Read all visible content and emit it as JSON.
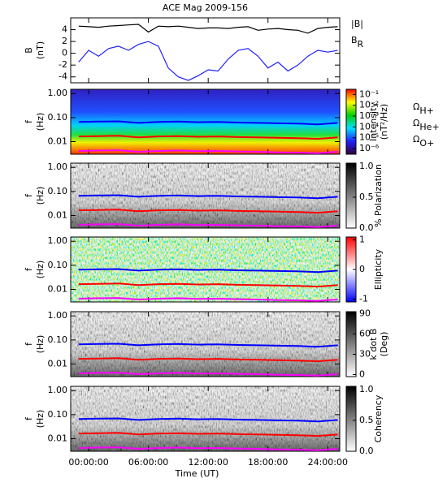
{
  "chart_data": [
    {
      "type": "line",
      "title": "ACE Mag 2009-156",
      "y_label": [
        "B",
        "(nT)"
      ],
      "x": [
        -1,
        0,
        1,
        2,
        3,
        4,
        5,
        6,
        7,
        8,
        9,
        10,
        11,
        12,
        13,
        14,
        15,
        16,
        17,
        18,
        19,
        20,
        21,
        22,
        23,
        24,
        25
      ],
      "xlim": [
        -1.8,
        25.2
      ],
      "xticks": [
        0,
        6,
        12,
        18,
        24
      ],
      "ylim": [
        -5,
        6
      ],
      "yticks": [
        -4,
        -2,
        0,
        2,
        4
      ],
      "series": [
        {
          "name": "|B|",
          "color": "#000000",
          "values": [
            4.6,
            4.5,
            4.4,
            4.6,
            4.7,
            4.8,
            4.9,
            3.6,
            4.6,
            4.5,
            4.6,
            4.4,
            4.2,
            4.3,
            4.3,
            4.2,
            4.4,
            4.5,
            3.9,
            4.1,
            4.2,
            4.0,
            3.9,
            3.4,
            4.2,
            4.4,
            4.5
          ]
        },
        {
          "name": "BR",
          "color": "#2020ff",
          "values": [
            -1.5,
            0.5,
            -0.5,
            0.8,
            1.2,
            0.5,
            1.5,
            2.0,
            1.2,
            -2.5,
            -4.0,
            -4.6,
            -3.8,
            -2.8,
            -3.0,
            -1.0,
            0.5,
            0.8,
            -0.5,
            -2.5,
            -1.5,
            -3.0,
            -2.0,
            -0.5,
            0.5,
            0.2,
            0.5
          ]
        }
      ]
    },
    {
      "type": "spectrogram",
      "y_label": [
        "f",
        "(Hz)"
      ],
      "log_y": true,
      "x": [
        -1,
        1,
        3,
        5,
        7,
        9,
        11,
        13,
        15,
        17,
        19,
        21,
        23,
        25
      ],
      "xlim": [
        -1.8,
        25.2
      ],
      "xticks": [
        0,
        6,
        12,
        18,
        24
      ],
      "ylim": [
        0.003,
        1.5
      ],
      "yticks": [
        {
          "value": 1,
          "label": "1.00"
        },
        {
          "value": 0.1,
          "label": "0.10"
        },
        {
          "value": 0.01,
          "label": "0.01"
        }
      ],
      "colorbar": {
        "label": [
          "Intensity",
          "(nT²/Hz)"
        ],
        "log": true,
        "lim": [
          3e-07,
          0.3
        ],
        "colors": [
          "#30003a",
          "#2020ff",
          "#00e0ff",
          "#00d000",
          "#ffff00",
          "#ff0000"
        ],
        "ticks": [
          {
            "value": 0.1,
            "label": "10⁻¹"
          },
          {
            "value": 0.01,
            "label": "10⁻²"
          },
          {
            "value": 0.001,
            "label": "10⁻³"
          },
          {
            "value": 0.0001,
            "label": "10⁻⁴"
          },
          {
            "value": 1e-05,
            "label": "10⁻⁵"
          },
          {
            "value": 1e-06,
            "label": "10⁻⁶"
          }
        ]
      },
      "series": [
        {
          "name": "ΩH+",
          "color": "#0000ff",
          "values": [
            0.066,
            0.068,
            0.07,
            0.06,
            0.066,
            0.068,
            0.064,
            0.066,
            0.062,
            0.06,
            0.058,
            0.056,
            0.052,
            0.06
          ]
        },
        {
          "name": "ΩHe+",
          "color": "#ff0000",
          "values": [
            0.0165,
            0.017,
            0.0175,
            0.015,
            0.0165,
            0.017,
            0.016,
            0.0165,
            0.0155,
            0.015,
            0.0145,
            0.014,
            0.013,
            0.015
          ]
        },
        {
          "name": "ΩO+",
          "color": "#ff00ff",
          "values": [
            0.0041,
            0.0043,
            0.0044,
            0.0038,
            0.0041,
            0.0043,
            0.004,
            0.0041,
            0.0039,
            0.0038,
            0.0036,
            0.0035,
            0.0033,
            0.0038
          ]
        }
      ]
    },
    {
      "type": "spectrogram",
      "y_label": [
        "f",
        "(Hz)"
      ],
      "log_y": true,
      "x": [
        -1,
        1,
        3,
        5,
        7,
        9,
        11,
        13,
        15,
        17,
        19,
        21,
        23,
        25
      ],
      "xlim": [
        -1.8,
        25.2
      ],
      "xticks": [
        0,
        6,
        12,
        18,
        24
      ],
      "ylim": [
        0.003,
        1.5
      ],
      "yticks": [
        {
          "value": 1,
          "label": "1.00"
        },
        {
          "value": 0.1,
          "label": "0.10"
        },
        {
          "value": 0.01,
          "label": "0.01"
        }
      ],
      "colorbar": {
        "label": [
          "% Polarization"
        ],
        "log": false,
        "lim": [
          0,
          1.05
        ],
        "colors": [
          "#ffffff",
          "#000000"
        ],
        "ticks": [
          {
            "value": 0,
            "label": "0.0"
          },
          {
            "value": 0.5,
            "label": "0.5"
          },
          {
            "value": 1,
            "label": "1.0"
          }
        ]
      },
      "series": [
        {
          "color": "#0000ff",
          "values": [
            0.066,
            0.068,
            0.07,
            0.06,
            0.066,
            0.068,
            0.064,
            0.066,
            0.062,
            0.06,
            0.058,
            0.056,
            0.052,
            0.06
          ]
        },
        {
          "color": "#ff0000",
          "values": [
            0.0165,
            0.017,
            0.0175,
            0.015,
            0.0165,
            0.017,
            0.016,
            0.0165,
            0.0155,
            0.015,
            0.0145,
            0.014,
            0.013,
            0.015
          ]
        },
        {
          "color": "#ff00ff",
          "values": [
            0.0041,
            0.0043,
            0.0044,
            0.0038,
            0.0041,
            0.0043,
            0.004,
            0.0041,
            0.0039,
            0.0038,
            0.0036,
            0.0035,
            0.0033,
            0.0038
          ]
        }
      ]
    },
    {
      "type": "spectrogram",
      "y_label": [
        "f",
        "(Hz)"
      ],
      "log_y": true,
      "x": [
        -1,
        1,
        3,
        5,
        7,
        9,
        11,
        13,
        15,
        17,
        19,
        21,
        23,
        25
      ],
      "xlim": [
        -1.8,
        25.2
      ],
      "xticks": [
        0,
        6,
        12,
        18,
        24
      ],
      "ylim": [
        0.003,
        1.5
      ],
      "yticks": [
        {
          "value": 1,
          "label": "1.00"
        },
        {
          "value": 0.1,
          "label": "0.10"
        },
        {
          "value": 0.01,
          "label": "0.01"
        }
      ],
      "colorbar": {
        "label": [
          "Ellipticity"
        ],
        "log": false,
        "lim": [
          -1.1,
          1.1
        ],
        "colors": [
          "#0000ff",
          "#ffffff",
          "#ff0000"
        ],
        "ticks": [
          1,
          0,
          -1
        ]
      },
      "series": [
        {
          "color": "#0000ff",
          "values": [
            0.066,
            0.068,
            0.07,
            0.06,
            0.066,
            0.068,
            0.064,
            0.066,
            0.062,
            0.06,
            0.058,
            0.056,
            0.052,
            0.06
          ]
        },
        {
          "color": "#ff0000",
          "values": [
            0.0165,
            0.017,
            0.0175,
            0.015,
            0.0165,
            0.017,
            0.016,
            0.0165,
            0.0155,
            0.015,
            0.0145,
            0.014,
            0.013,
            0.015
          ]
        },
        {
          "color": "#ff00ff",
          "values": [
            0.0041,
            0.0043,
            0.0044,
            0.0038,
            0.0041,
            0.0043,
            0.004,
            0.0041,
            0.0039,
            0.0038,
            0.0036,
            0.0035,
            0.0033,
            0.0038
          ]
        }
      ]
    },
    {
      "type": "spectrogram",
      "y_label": [
        "f",
        "(Hz)"
      ],
      "log_y": true,
      "x": [
        -1,
        1,
        3,
        5,
        7,
        9,
        11,
        13,
        15,
        17,
        19,
        21,
        23,
        25
      ],
      "xlim": [
        -1.8,
        25.2
      ],
      "xticks": [
        0,
        6,
        12,
        18,
        24
      ],
      "ylim": [
        0.003,
        1.5
      ],
      "yticks": [
        {
          "value": 1,
          "label": "1.00"
        },
        {
          "value": 0.1,
          "label": "0.10"
        },
        {
          "value": 0.01,
          "label": "0.01"
        }
      ],
      "colorbar": {
        "label": [
          "k dot B",
          "(Deg)"
        ],
        "log": false,
        "lim": [
          -3,
          93
        ],
        "colors": [
          "#ffffff",
          "#000000"
        ],
        "ticks": [
          90,
          60,
          30,
          0
        ]
      },
      "series": [
        {
          "color": "#0000ff",
          "values": [
            0.066,
            0.068,
            0.07,
            0.06,
            0.066,
            0.068,
            0.064,
            0.066,
            0.062,
            0.06,
            0.058,
            0.056,
            0.052,
            0.06
          ]
        },
        {
          "color": "#ff0000",
          "values": [
            0.0165,
            0.017,
            0.0175,
            0.015,
            0.0165,
            0.017,
            0.016,
            0.0165,
            0.0155,
            0.015,
            0.0145,
            0.014,
            0.013,
            0.015
          ]
        },
        {
          "color": "#ff00ff",
          "values": [
            0.0041,
            0.0043,
            0.0044,
            0.0038,
            0.0041,
            0.0043,
            0.004,
            0.0041,
            0.0039,
            0.0038,
            0.0036,
            0.0035,
            0.0033,
            0.0038
          ]
        }
      ]
    },
    {
      "type": "spectrogram",
      "y_label": [
        "f",
        "(Hz)"
      ],
      "log_y": true,
      "x_label": "Time (UT)",
      "x": [
        -1,
        1,
        3,
        5,
        7,
        9,
        11,
        13,
        15,
        17,
        19,
        21,
        23,
        25
      ],
      "xlim": [
        -1.8,
        25.2
      ],
      "xticks": [
        {
          "value": 0,
          "label": "00:00:00"
        },
        {
          "value": 6,
          "label": "06:00:00"
        },
        {
          "value": 12,
          "label": "12:00:00"
        },
        {
          "value": 18,
          "label": "18:00:00"
        },
        {
          "value": 24,
          "label": "24:00:00"
        }
      ],
      "ylim": [
        0.003,
        1.5
      ],
      "yticks": [
        {
          "value": 1,
          "label": "1.00"
        },
        {
          "value": 0.1,
          "label": "0.10"
        },
        {
          "value": 0.01,
          "label": "0.01"
        }
      ],
      "colorbar": {
        "label": [
          "Coherency"
        ],
        "log": false,
        "lim": [
          0,
          1.05
        ],
        "colors": [
          "#ffffff",
          "#000000"
        ],
        "ticks": [
          {
            "value": 0,
            "label": "0.0"
          },
          {
            "value": 0.5,
            "label": "0.5"
          },
          {
            "value": 1,
            "label": "1.0"
          }
        ]
      },
      "series": [
        {
          "color": "#0000ff",
          "values": [
            0.066,
            0.068,
            0.07,
            0.06,
            0.066,
            0.068,
            0.064,
            0.066,
            0.062,
            0.06,
            0.058,
            0.056,
            0.052,
            0.06
          ]
        },
        {
          "color": "#ff0000",
          "values": [
            0.0165,
            0.017,
            0.0175,
            0.015,
            0.0165,
            0.017,
            0.016,
            0.0165,
            0.0155,
            0.015,
            0.0145,
            0.014,
            0.013,
            0.015
          ]
        },
        {
          "color": "#ff00ff",
          "values": [
            0.0041,
            0.0043,
            0.0044,
            0.0038,
            0.0041,
            0.0043,
            0.004,
            0.0041,
            0.0039,
            0.0038,
            0.0036,
            0.0035,
            0.0033,
            0.0038
          ]
        }
      ]
    }
  ]
}
